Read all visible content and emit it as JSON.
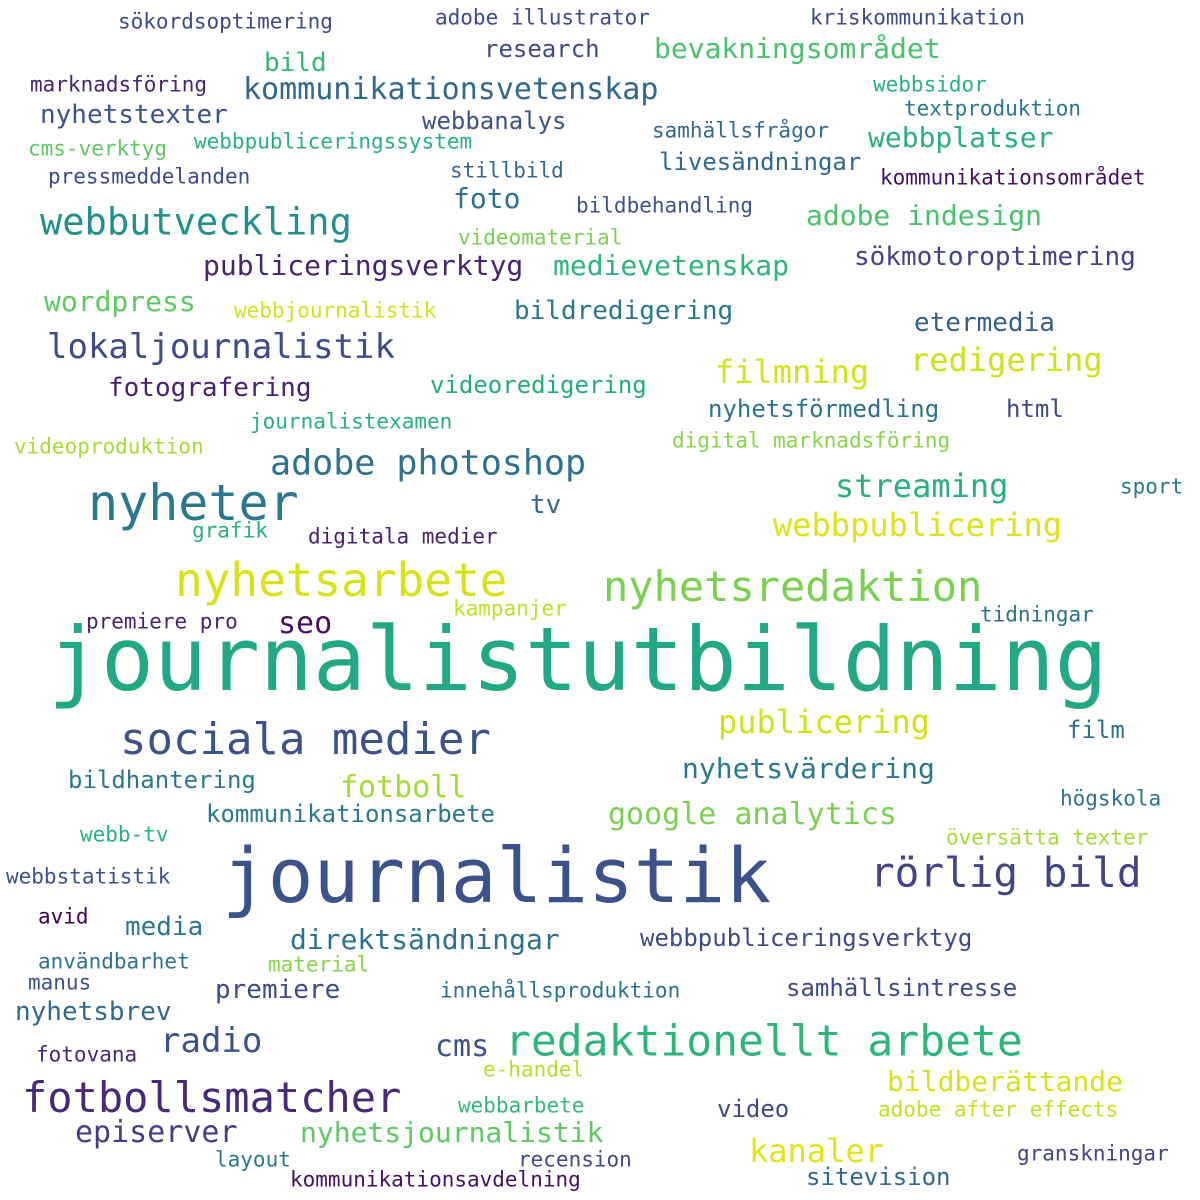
{
  "word_cloud": {
    "words": [
      {
        "text": "journalistutbildning",
        "color": "#22a884"
      },
      {
        "text": "journalistik",
        "color": "#3b528b"
      },
      {
        "text": "nyheter",
        "color": "#2a788e"
      },
      {
        "text": "nyhetsarbete",
        "color": "#d8e219"
      },
      {
        "text": "nyhetsredaktion",
        "color": "#7ad151"
      },
      {
        "text": "sociala medier",
        "color": "#3b528b"
      },
      {
        "text": "redaktionellt arbete",
        "color": "#2fb47c"
      },
      {
        "text": "fotbollsmatcher",
        "color": "#482878"
      },
      {
        "text": "rörlig bild",
        "color": "#414487"
      },
      {
        "text": "webbutveckling",
        "color": "#21918c"
      },
      {
        "text": "adobe photoshop",
        "color": "#2c728e"
      },
      {
        "text": "lokaljournalistik",
        "color": "#3e4a89"
      },
      {
        "text": "kommunikationsvetenskap",
        "color": "#31688e"
      },
      {
        "text": "webbpublicering",
        "color": "#dde318"
      },
      {
        "text": "publicering",
        "color": "#d0e11c"
      },
      {
        "text": "streaming",
        "color": "#2ab07f"
      },
      {
        "text": "filmning",
        "color": "#d2e21b"
      },
      {
        "text": "redigering",
        "color": "#cde11d"
      },
      {
        "text": "google analytics",
        "color": "#7ad151"
      },
      {
        "text": "fotboll",
        "color": "#a5db36"
      },
      {
        "text": "episerver",
        "color": "#433e85"
      },
      {
        "text": "kanaler",
        "color": "#e2e418"
      },
      {
        "text": "bildberättande",
        "color": "#d8e219"
      },
      {
        "text": "adobe indesign",
        "color": "#4ac16d"
      },
      {
        "text": "bevakningsområdet",
        "color": "#4ac16d"
      },
      {
        "text": "medievetenskap",
        "color": "#2fb47c"
      },
      {
        "text": "publiceringsverktyg",
        "color": "#482475"
      },
      {
        "text": "nyhetsjournalistik",
        "color": "#5ec962"
      },
      {
        "text": "direktsändningar",
        "color": "#2c728e"
      },
      {
        "text": "radio",
        "color": "#3b528b"
      },
      {
        "text": "cms",
        "color": "#3b528b"
      },
      {
        "text": "nyhetsvärdering",
        "color": "#2a788e"
      },
      {
        "text": "wordpress",
        "color": "#5ec962"
      },
      {
        "text": "sökmotoroptimering",
        "color": "#414487"
      },
      {
        "text": "webbplatser",
        "color": "#2ab07f"
      },
      {
        "text": "foto",
        "color": "#2c728e"
      },
      {
        "text": "seo",
        "color": "#471063"
      },
      {
        "text": "etermedia",
        "color": "#355f8d"
      },
      {
        "text": "fotografering",
        "color": "#482173"
      },
      {
        "text": "bildredigering",
        "color": "#2a788e"
      },
      {
        "text": "videoredigering",
        "color": "#25ab82"
      },
      {
        "text": "nyhetsförmedling",
        "color": "#2c728e"
      },
      {
        "text": "nyhetstexter",
        "color": "#3b528b"
      },
      {
        "text": "livesändningar",
        "color": "#31688e"
      },
      {
        "text": "webbanalys",
        "color": "#3b528b"
      },
      {
        "text": "kommunikationsarbete",
        "color": "#2a788e"
      },
      {
        "text": "bildhantering",
        "color": "#2a788e"
      },
      {
        "text": "media",
        "color": "#2a788e"
      },
      {
        "text": "premiere",
        "color": "#3e4a89"
      },
      {
        "text": "nyhetsbrev",
        "color": "#31688e"
      },
      {
        "text": "webbpubliceringsverktyg",
        "color": "#3e4a89"
      },
      {
        "text": "samhällsintresse",
        "color": "#3e4a89"
      },
      {
        "text": "video",
        "color": "#3e4a89"
      },
      {
        "text": "bild",
        "color": "#35b779"
      },
      {
        "text": "research",
        "color": "#3e4a89"
      },
      {
        "text": "film",
        "color": "#2c728e"
      },
      {
        "text": "tv",
        "color": "#31688e"
      },
      {
        "text": "html",
        "color": "#3e4a89"
      },
      {
        "text": "sport",
        "color": "#2a788e"
      },
      {
        "text": "sökordsoptimering",
        "color": "#3e4a89"
      },
      {
        "text": "adobe illustrator",
        "color": "#3e4a89"
      },
      {
        "text": "kriskommunikation",
        "color": "#3e4a89"
      },
      {
        "text": "marknadsföring",
        "color": "#482475"
      },
      {
        "text": "webbsidor",
        "color": "#2ab07f"
      },
      {
        "text": "textproduktion",
        "color": "#2a788e"
      },
      {
        "text": "samhällsfrågor",
        "color": "#31688e"
      },
      {
        "text": "cms-verktyg",
        "color": "#5ec962"
      },
      {
        "text": "webbpubliceringssystem",
        "color": "#2ab07f"
      },
      {
        "text": "pressmeddelanden",
        "color": "#3e4a89"
      },
      {
        "text": "stillbild",
        "color": "#31688e"
      },
      {
        "text": "kommunikationsområdet",
        "color": "#471063"
      },
      {
        "text": "bildbehandling",
        "color": "#3b528b"
      },
      {
        "text": "videomaterial",
        "color": "#7ad151"
      },
      {
        "text": "webbjournalistik",
        "color": "#d2e21b"
      },
      {
        "text": "journalistexamen",
        "color": "#2ab07f"
      },
      {
        "text": "videoproduktion",
        "color": "#a5db36"
      },
      {
        "text": "digital marknadsföring",
        "color": "#86d549"
      },
      {
        "text": "grafik",
        "color": "#2ab07f"
      },
      {
        "text": "digitala medier",
        "color": "#482173"
      },
      {
        "text": "premiere pro",
        "color": "#482475"
      },
      {
        "text": "kampanjer",
        "color": "#c2df23"
      },
      {
        "text": "tidningar",
        "color": "#2c728e"
      },
      {
        "text": "högskola",
        "color": "#2c728e"
      },
      {
        "text": "översätta texter",
        "color": "#a5db36"
      },
      {
        "text": "webb-tv",
        "color": "#2ab07f"
      },
      {
        "text": "webbstatistik",
        "color": "#3b528b"
      },
      {
        "text": "avid",
        "color": "#440154"
      },
      {
        "text": "användbarhet",
        "color": "#2c728e"
      },
      {
        "text": "material",
        "color": "#86d549"
      },
      {
        "text": "manus",
        "color": "#3b528b"
      },
      {
        "text": "innehållsproduktion",
        "color": "#2c728e"
      },
      {
        "text": "fotovana",
        "color": "#482878"
      },
      {
        "text": "e-handel",
        "color": "#b5de2b"
      },
      {
        "text": "webbarbete",
        "color": "#35b779"
      },
      {
        "text": "adobe after effects",
        "color": "#c2df23"
      },
      {
        "text": "layout",
        "color": "#2a788e"
      },
      {
        "text": "recension",
        "color": "#3e4a89"
      },
      {
        "text": "granskningar",
        "color": "#414487"
      },
      {
        "text": "kommunikationsavdelning",
        "color": "#471063"
      },
      {
        "text": "sitevision",
        "color": "#31688e"
      }
    ]
  }
}
